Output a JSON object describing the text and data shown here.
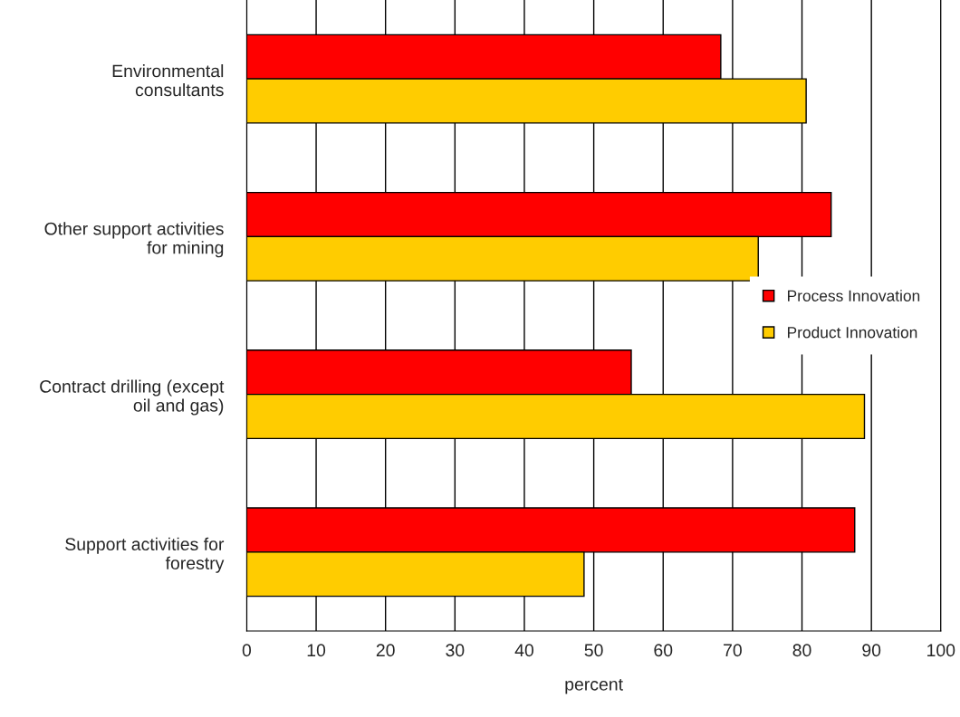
{
  "chart_data": {
    "type": "bar",
    "orientation": "horizontal",
    "xlabel": "percent",
    "categories": [
      "Environmental\nconsultants",
      "Other support activities\nfor mining",
      "Contract drilling (except\noil and gas)",
      "Support activities for\nforestry"
    ],
    "series": [
      {
        "name": "Process Innovation",
        "color": "#ff0000",
        "values": [
          68.3,
          84.2,
          55.4,
          87.6
        ]
      },
      {
        "name": "Product Innovation",
        "color": "#ffcc00",
        "values": [
          80.6,
          73.7,
          89.0,
          48.6
        ]
      }
    ],
    "xlim": [
      0,
      100
    ],
    "xticks": [
      0,
      10,
      20,
      30,
      40,
      50,
      60,
      70,
      80,
      90,
      100
    ],
    "grid": "x",
    "legend": "center right"
  }
}
